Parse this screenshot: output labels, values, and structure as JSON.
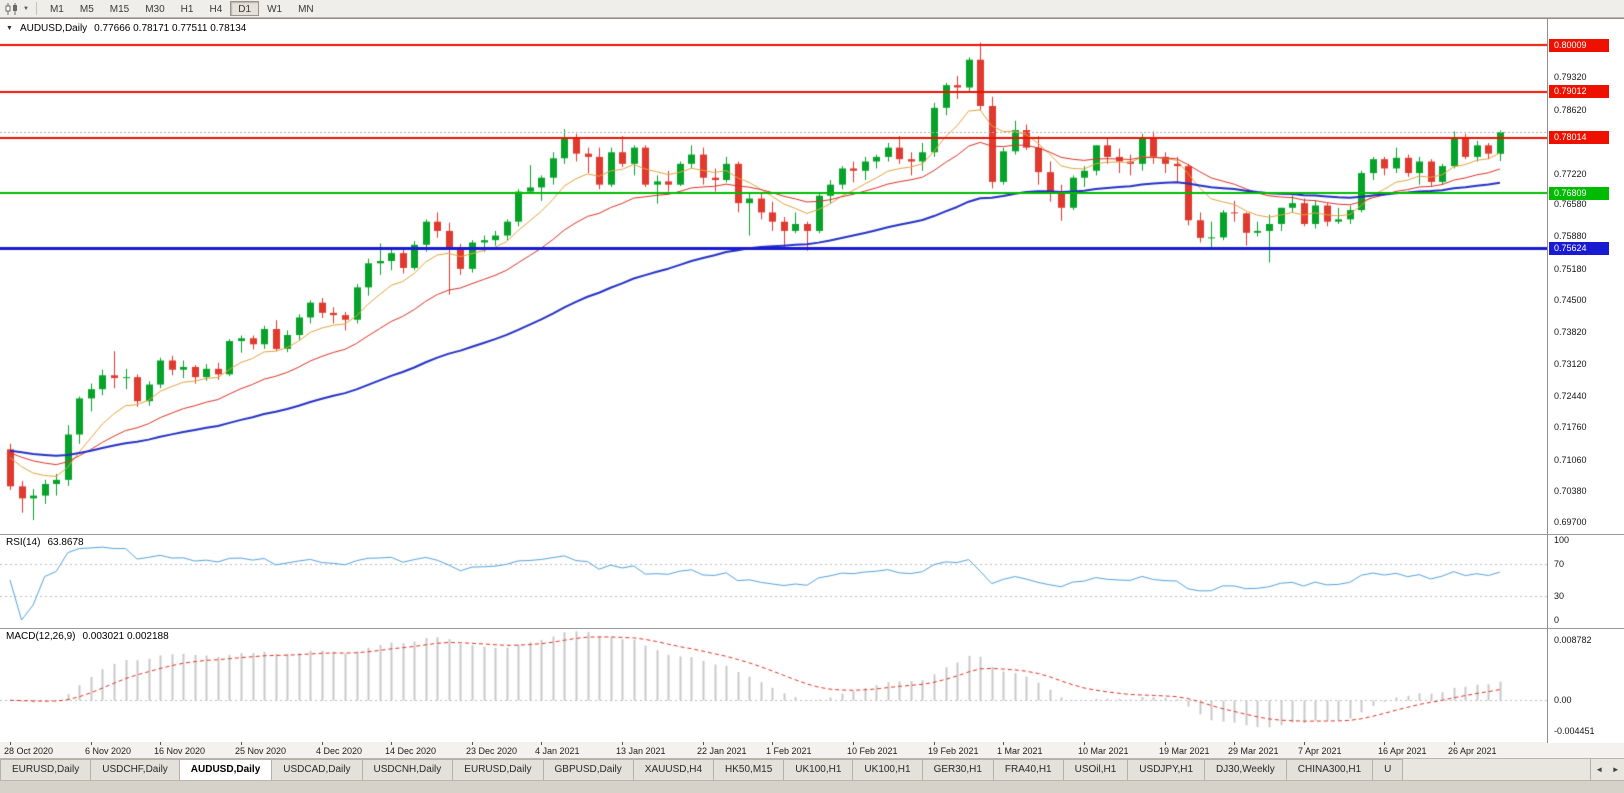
{
  "icons": {
    "collapse_arrow": "▼",
    "dropdown_caret": "▼",
    "scroll_left": "◄",
    "scroll_right": "►"
  },
  "toolbar": {
    "timeframes": [
      "M1",
      "M5",
      "M15",
      "M30",
      "H1",
      "H4",
      "D1",
      "W1",
      "MN"
    ],
    "active_timeframe": "D1"
  },
  "chart": {
    "symbol_title": "AUDUSD,Daily",
    "ohlc_text": "0.77666 0.78171 0.77511 0.78134",
    "rsi_title": "RSI(14)",
    "rsi_value": "63.8678",
    "macd_title": "MACD(12,26,9)",
    "macd_values": "0.003021 0.002188"
  },
  "chart_data": {
    "type": "candlestick",
    "title": "AUDUSD,Daily",
    "last_bar": {
      "open": 0.77666,
      "high": 0.78171,
      "low": 0.77511,
      "close": 0.78134
    },
    "y_axis": {
      "max": 0.8058,
      "min": 0.6945,
      "ticks": [
        "0.79320",
        "0.78620",
        "0.77220",
        "0.76580",
        "0.75880",
        "0.75180",
        "0.74500",
        "0.73820",
        "0.73120",
        "0.72440",
        "0.71760",
        "0.71060",
        "0.70380",
        "0.69700"
      ]
    },
    "levels": [
      {
        "value": 0.80009,
        "label": "0.80009",
        "color": "#ee1100",
        "width": 2
      },
      {
        "value": 0.79012,
        "label": "0.79012",
        "color": "#ee1100",
        "width": 2
      },
      {
        "value": 0.78014,
        "label": "0.78014",
        "color": "#ee1100",
        "width": 2
      },
      {
        "value": 0.76809,
        "label": "0.76809",
        "color": "#00bb00",
        "width": 2
      },
      {
        "value": 0.75624,
        "label": "0.75624",
        "color": "#1a1ad2",
        "width": 3
      }
    ],
    "bid_line": {
      "value": 0.78134,
      "color": "#b4b4b4"
    },
    "colors": {
      "bull": "#07a22a",
      "bear": "#e0392e"
    },
    "moving_averages": [
      {
        "period": 8,
        "color": "#e2a33c",
        "width": 1
      },
      {
        "period": 20,
        "color": "#d93226",
        "width": 1
      },
      {
        "period": 55,
        "color": "#2431c4",
        "width": 2
      }
    ],
    "date_ticks": [
      {
        "i": 0,
        "label": "28 Oct 2020"
      },
      {
        "i": 7,
        "label": "6 Nov 2020"
      },
      {
        "i": 13,
        "label": "16 Nov 2020"
      },
      {
        "i": 20,
        "label": "25 Nov 2020"
      },
      {
        "i": 27,
        "label": "4 Dec 2020"
      },
      {
        "i": 33,
        "label": "14 Dec 2020"
      },
      {
        "i": 40,
        "label": "23 Dec 2020"
      },
      {
        "i": 46,
        "label": "4 Jan 2021"
      },
      {
        "i": 53,
        "label": "13 Jan 2021"
      },
      {
        "i": 60,
        "label": "22 Jan 2021"
      },
      {
        "i": 66,
        "label": "1 Feb 2021"
      },
      {
        "i": 73,
        "label": "10 Feb 2021"
      },
      {
        "i": 80,
        "label": "19 Feb 2021"
      },
      {
        "i": 86,
        "label": "1 Mar 2021"
      },
      {
        "i": 93,
        "label": "10 Mar 2021"
      },
      {
        "i": 100,
        "label": "19 Mar 2021"
      },
      {
        "i": 106,
        "label": "29 Mar 2021"
      },
      {
        "i": 112,
        "label": "7 Apr 2021"
      },
      {
        "i": 119,
        "label": "16 Apr 2021"
      },
      {
        "i": 125,
        "label": "26 Apr 2021"
      }
    ],
    "ohlc": [
      [
        0.7128,
        0.714,
        0.704,
        0.7048
      ],
      [
        0.7048,
        0.706,
        0.6991,
        0.7022
      ],
      [
        0.7022,
        0.7042,
        0.6975,
        0.7028
      ],
      [
        0.7028,
        0.7062,
        0.701,
        0.7053
      ],
      [
        0.7053,
        0.7075,
        0.7028,
        0.7062
      ],
      [
        0.7062,
        0.718,
        0.7049,
        0.716
      ],
      [
        0.716,
        0.7242,
        0.714,
        0.7238
      ],
      [
        0.7238,
        0.727,
        0.721,
        0.7258
      ],
      [
        0.7258,
        0.73,
        0.7245,
        0.7288
      ],
      [
        0.7288,
        0.734,
        0.726,
        0.7282
      ],
      [
        0.7282,
        0.7302,
        0.7258,
        0.7284
      ],
      [
        0.7284,
        0.729,
        0.722,
        0.7232
      ],
      [
        0.7232,
        0.7275,
        0.7222,
        0.7268
      ],
      [
        0.7268,
        0.7326,
        0.726,
        0.732
      ],
      [
        0.732,
        0.733,
        0.7288,
        0.73
      ],
      [
        0.73,
        0.732,
        0.7282,
        0.7306
      ],
      [
        0.7306,
        0.731,
        0.727,
        0.7284
      ],
      [
        0.7284,
        0.7312,
        0.7276,
        0.7302
      ],
      [
        0.7302,
        0.7315,
        0.7278,
        0.729
      ],
      [
        0.729,
        0.7366,
        0.7286,
        0.7362
      ],
      [
        0.7362,
        0.7374,
        0.7337,
        0.7368
      ],
      [
        0.7368,
        0.7374,
        0.7344,
        0.7355
      ],
      [
        0.7355,
        0.7395,
        0.7345,
        0.7388
      ],
      [
        0.7388,
        0.7407,
        0.734,
        0.7345
      ],
      [
        0.7345,
        0.7385,
        0.7338,
        0.7375
      ],
      [
        0.7375,
        0.742,
        0.7365,
        0.7413
      ],
      [
        0.7413,
        0.745,
        0.74,
        0.7445
      ],
      [
        0.7445,
        0.7455,
        0.7412,
        0.7423
      ],
      [
        0.7423,
        0.7435,
        0.74,
        0.7418
      ],
      [
        0.7418,
        0.7425,
        0.7385,
        0.7408
      ],
      [
        0.7408,
        0.7485,
        0.74,
        0.7478
      ],
      [
        0.7478,
        0.754,
        0.746,
        0.753
      ],
      [
        0.753,
        0.7573,
        0.7505,
        0.7535
      ],
      [
        0.7535,
        0.756,
        0.7515,
        0.7552
      ],
      [
        0.7552,
        0.7565,
        0.7508,
        0.752
      ],
      [
        0.752,
        0.7578,
        0.7515,
        0.757
      ],
      [
        0.757,
        0.7625,
        0.7555,
        0.762
      ],
      [
        0.762,
        0.764,
        0.7585,
        0.76
      ],
      [
        0.76,
        0.7618,
        0.7462,
        0.7565
      ],
      [
        0.7565,
        0.7572,
        0.7505,
        0.7518
      ],
      [
        0.7518,
        0.758,
        0.751,
        0.7575
      ],
      [
        0.7575,
        0.759,
        0.7555,
        0.758
      ],
      [
        0.758,
        0.76,
        0.7568,
        0.759
      ],
      [
        0.759,
        0.7625,
        0.758,
        0.762
      ],
      [
        0.762,
        0.769,
        0.761,
        0.7685
      ],
      [
        0.7685,
        0.7742,
        0.768,
        0.7694
      ],
      [
        0.7694,
        0.772,
        0.7665,
        0.7715
      ],
      [
        0.7715,
        0.777,
        0.77,
        0.7757
      ],
      [
        0.7757,
        0.782,
        0.7745,
        0.78
      ],
      [
        0.78,
        0.781,
        0.775,
        0.7767
      ],
      [
        0.7767,
        0.778,
        0.7725,
        0.776
      ],
      [
        0.776,
        0.778,
        0.769,
        0.77
      ],
      [
        0.77,
        0.778,
        0.7695,
        0.777
      ],
      [
        0.777,
        0.7805,
        0.7738,
        0.7745
      ],
      [
        0.7745,
        0.7785,
        0.772,
        0.778
      ],
      [
        0.778,
        0.7785,
        0.7695,
        0.77
      ],
      [
        0.77,
        0.772,
        0.7659,
        0.7707
      ],
      [
        0.7707,
        0.773,
        0.7685,
        0.77
      ],
      [
        0.77,
        0.775,
        0.7697,
        0.7745
      ],
      [
        0.7745,
        0.7785,
        0.7735,
        0.7765
      ],
      [
        0.7765,
        0.778,
        0.77,
        0.7715
      ],
      [
        0.7715,
        0.7735,
        0.7685,
        0.771
      ],
      [
        0.771,
        0.776,
        0.7705,
        0.7745
      ],
      [
        0.7745,
        0.775,
        0.764,
        0.766
      ],
      [
        0.766,
        0.768,
        0.759,
        0.767
      ],
      [
        0.767,
        0.768,
        0.7625,
        0.764
      ],
      [
        0.764,
        0.7663,
        0.76,
        0.762
      ],
      [
        0.762,
        0.763,
        0.7563,
        0.76
      ],
      [
        0.76,
        0.764,
        0.7595,
        0.7615
      ],
      [
        0.7615,
        0.762,
        0.7557,
        0.76
      ],
      [
        0.76,
        0.768,
        0.7595,
        0.7676
      ],
      [
        0.7676,
        0.771,
        0.766,
        0.77
      ],
      [
        0.77,
        0.774,
        0.769,
        0.7735
      ],
      [
        0.7735,
        0.775,
        0.7705,
        0.773
      ],
      [
        0.773,
        0.776,
        0.771,
        0.775
      ],
      [
        0.775,
        0.7765,
        0.7735,
        0.776
      ],
      [
        0.776,
        0.779,
        0.775,
        0.778
      ],
      [
        0.778,
        0.7805,
        0.7745,
        0.7755
      ],
      [
        0.7755,
        0.777,
        0.772,
        0.775
      ],
      [
        0.775,
        0.779,
        0.773,
        0.777
      ],
      [
        0.777,
        0.7877,
        0.776,
        0.7866
      ],
      [
        0.7866,
        0.792,
        0.785,
        0.7915
      ],
      [
        0.7915,
        0.7935,
        0.7885,
        0.791
      ],
      [
        0.791,
        0.7975,
        0.79,
        0.797
      ],
      [
        0.797,
        0.8007,
        0.786,
        0.787
      ],
      [
        0.787,
        0.789,
        0.7692,
        0.7706
      ],
      [
        0.7706,
        0.778,
        0.77,
        0.7772
      ],
      [
        0.7772,
        0.7838,
        0.7765,
        0.7818
      ],
      [
        0.7818,
        0.783,
        0.7775,
        0.778
      ],
      [
        0.778,
        0.7805,
        0.77,
        0.7727
      ],
      [
        0.7727,
        0.775,
        0.7663,
        0.7685
      ],
      [
        0.7685,
        0.77,
        0.7622,
        0.765
      ],
      [
        0.765,
        0.772,
        0.7645,
        0.7715
      ],
      [
        0.7715,
        0.774,
        0.7695,
        0.773
      ],
      [
        0.773,
        0.7785,
        0.772,
        0.7785
      ],
      [
        0.7785,
        0.78,
        0.7745,
        0.776
      ],
      [
        0.776,
        0.7778,
        0.7725,
        0.775
      ],
      [
        0.775,
        0.7765,
        0.772,
        0.7745
      ],
      [
        0.7745,
        0.781,
        0.773,
        0.78
      ],
      [
        0.78,
        0.7815,
        0.7745,
        0.776
      ],
      [
        0.776,
        0.777,
        0.7725,
        0.7745
      ],
      [
        0.7745,
        0.776,
        0.7705,
        0.774
      ],
      [
        0.774,
        0.7745,
        0.7612,
        0.7623
      ],
      [
        0.7623,
        0.764,
        0.7575,
        0.7585
      ],
      [
        0.7585,
        0.762,
        0.756,
        0.7586
      ],
      [
        0.7586,
        0.7645,
        0.758,
        0.764
      ],
      [
        0.764,
        0.7665,
        0.762,
        0.7638
      ],
      [
        0.7638,
        0.764,
        0.7568,
        0.7596
      ],
      [
        0.7596,
        0.762,
        0.7588,
        0.76
      ],
      [
        0.76,
        0.7635,
        0.7532,
        0.7615
      ],
      [
        0.7615,
        0.765,
        0.76,
        0.765
      ],
      [
        0.765,
        0.7677,
        0.764,
        0.766
      ],
      [
        0.766,
        0.767,
        0.761,
        0.7615
      ],
      [
        0.7615,
        0.7665,
        0.7605,
        0.7655
      ],
      [
        0.7655,
        0.766,
        0.761,
        0.762
      ],
      [
        0.762,
        0.765,
        0.7615,
        0.7625
      ],
      [
        0.7625,
        0.7655,
        0.7615,
        0.7645
      ],
      [
        0.7645,
        0.773,
        0.764,
        0.7725
      ],
      [
        0.7725,
        0.776,
        0.771,
        0.7755
      ],
      [
        0.7755,
        0.776,
        0.772,
        0.7735
      ],
      [
        0.7735,
        0.778,
        0.7725,
        0.7758
      ],
      [
        0.7758,
        0.7765,
        0.7717,
        0.7725
      ],
      [
        0.7725,
        0.776,
        0.77,
        0.775
      ],
      [
        0.775,
        0.7755,
        0.7695,
        0.7706
      ],
      [
        0.7706,
        0.7745,
        0.77,
        0.774
      ],
      [
        0.774,
        0.7815,
        0.7735,
        0.78
      ],
      [
        0.78,
        0.781,
        0.7755,
        0.776
      ],
      [
        0.776,
        0.7795,
        0.775,
        0.7785
      ],
      [
        0.7785,
        0.779,
        0.7755,
        0.7767
      ],
      [
        0.77666,
        0.78171,
        0.77511,
        0.78134
      ]
    ],
    "rsi": {
      "period": 14,
      "current": 63.8678,
      "color": "#54a1dc",
      "guides": [
        70,
        30
      ],
      "scale_values": [
        100,
        70,
        30,
        0
      ],
      "scale_labels": [
        "100",
        "70",
        "30",
        "0"
      ]
    },
    "macd": {
      "fast": 12,
      "slow": 26,
      "signal": 9,
      "main": 0.003021,
      "signal_value": 0.002188,
      "hist_color": "#c9c9c9",
      "signal_color": "#e03226",
      "vmax": 0.0093,
      "vmin": -0.00502,
      "scale_values": [
        0.008782,
        0,
        -0.004451
      ],
      "scale_labels": [
        "0.008782",
        "0.00",
        "-0.004451"
      ]
    }
  },
  "tab_bar": {
    "tabs": [
      {
        "label": "EURUSD,Daily",
        "active": false
      },
      {
        "label": "USDCHF,Daily",
        "active": false
      },
      {
        "label": "AUDUSD,Daily",
        "active": true
      },
      {
        "label": "USDCAD,Daily",
        "active": false
      },
      {
        "label": "USDCNH,Daily",
        "active": false
      },
      {
        "label": "EURUSD,Daily",
        "active": false
      },
      {
        "label": "GBPUSD,Daily",
        "active": false
      },
      {
        "label": "XAUUSD,H4",
        "active": false
      },
      {
        "label": "HK50,M15",
        "active": false
      },
      {
        "label": "UK100,H1",
        "active": false
      },
      {
        "label": "UK100,H1",
        "active": false
      },
      {
        "label": "GER30,H1",
        "active": false
      },
      {
        "label": "FRA40,H1",
        "active": false
      },
      {
        "label": "USOil,H1",
        "active": false
      },
      {
        "label": "USDJPY,H1",
        "active": false
      },
      {
        "label": "DJ30,Weekly",
        "active": false
      },
      {
        "label": "CHINA300,H1",
        "active": false
      },
      {
        "label": "U",
        "active": false
      }
    ]
  }
}
